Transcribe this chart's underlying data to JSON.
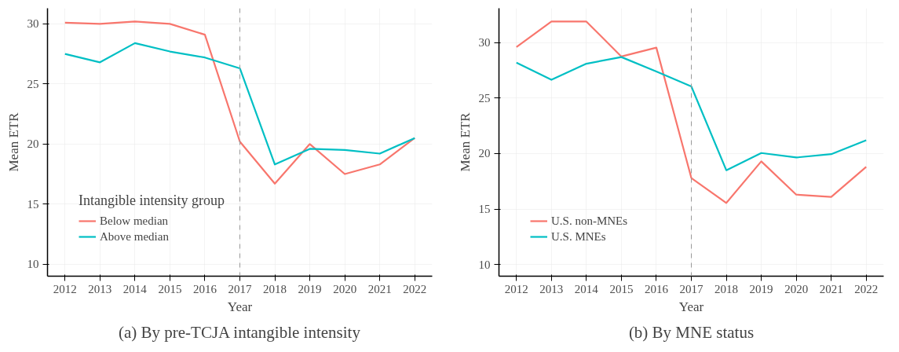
{
  "chart_data": [
    {
      "type": "line",
      "title": "(a) By pre-TCJA intangible intensity",
      "xlabel": "Year",
      "ylabel": "Mean ETR",
      "legend_title": "Intangible intensity group",
      "x": [
        2012,
        2013,
        2014,
        2015,
        2016,
        2017,
        2018,
        2019,
        2020,
        2021,
        2022
      ],
      "series": [
        {
          "name": "Below median",
          "color": "#f8766d",
          "values": [
            30.1,
            30.0,
            30.2,
            30.0,
            29.1,
            20.2,
            16.7,
            20.0,
            17.5,
            18.3,
            20.5
          ]
        },
        {
          "name": "Above median",
          "color": "#00bfc4",
          "values": [
            27.5,
            26.8,
            28.4,
            27.7,
            27.2,
            26.3,
            18.3,
            19.6,
            19.5,
            19.2,
            20.5
          ]
        }
      ],
      "xlim": [
        2011.5,
        2022.5
      ],
      "xticks": [
        2012,
        2013,
        2014,
        2015,
        2016,
        2017,
        2018,
        2019,
        2020,
        2021,
        2022
      ],
      "ylim": [
        9.0,
        31.3
      ],
      "yticks": [
        10,
        15,
        20,
        25,
        30
      ],
      "ref_lines": [
        {
          "axis": "x",
          "value": 2017,
          "label": null,
          "color": "#999999",
          "line_style": "dashed"
        }
      ],
      "grid": true,
      "legend": "bottom left",
      "line_style": "solid",
      "marker": "none"
    },
    {
      "type": "line",
      "title": "(b) By MNE status",
      "xlabel": "Year",
      "ylabel": "Mean ETR",
      "x": [
        2012,
        2013,
        2014,
        2015,
        2016,
        2017,
        2018,
        2019,
        2020,
        2021,
        2022
      ],
      "series": [
        {
          "name": "U.S. non-MNEs",
          "color": "#f8766d",
          "values": [
            29.6,
            31.9,
            31.9,
            28.75,
            29.55,
            17.8,
            15.55,
            19.3,
            16.3,
            16.1,
            18.8
          ]
        },
        {
          "name": "U.S. MNEs",
          "color": "#00bfc4",
          "values": [
            28.2,
            26.65,
            28.1,
            28.7,
            27.4,
            26.05,
            18.5,
            20.05,
            19.65,
            19.95,
            21.2
          ]
        }
      ],
      "xlim": [
        2011.5,
        2022.5
      ],
      "xticks": [
        2012,
        2013,
        2014,
        2015,
        2016,
        2017,
        2018,
        2019,
        2020,
        2021,
        2022
      ],
      "ylim": [
        8.95,
        33.1
      ],
      "yticks": [
        10,
        15,
        20,
        25,
        30
      ],
      "ref_lines": [
        {
          "axis": "x",
          "value": 2017,
          "label": null,
          "color": "#999999",
          "line_style": "dashed"
        }
      ],
      "grid": true,
      "legend": "bottom left",
      "line_style": "solid",
      "marker": "none"
    }
  ]
}
